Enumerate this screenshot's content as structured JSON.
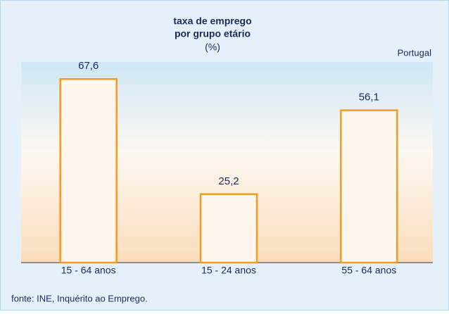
{
  "chart_data": {
    "type": "bar",
    "title": [
      "taxa de emprego",
      "por grupo etário"
    ],
    "subtitle": "(%)",
    "annotation": "Portugal",
    "source": "fonte: INE, Inquérito ao Emprego.",
    "categories": [
      "15 - 64 anos",
      "15 - 24 anos",
      "55 - 64 anos"
    ],
    "values": [
      67.6,
      25.2,
      56.1
    ],
    "value_labels": [
      "67,6",
      "25,2",
      "56,1"
    ],
    "color": "#f59a1c"
  }
}
